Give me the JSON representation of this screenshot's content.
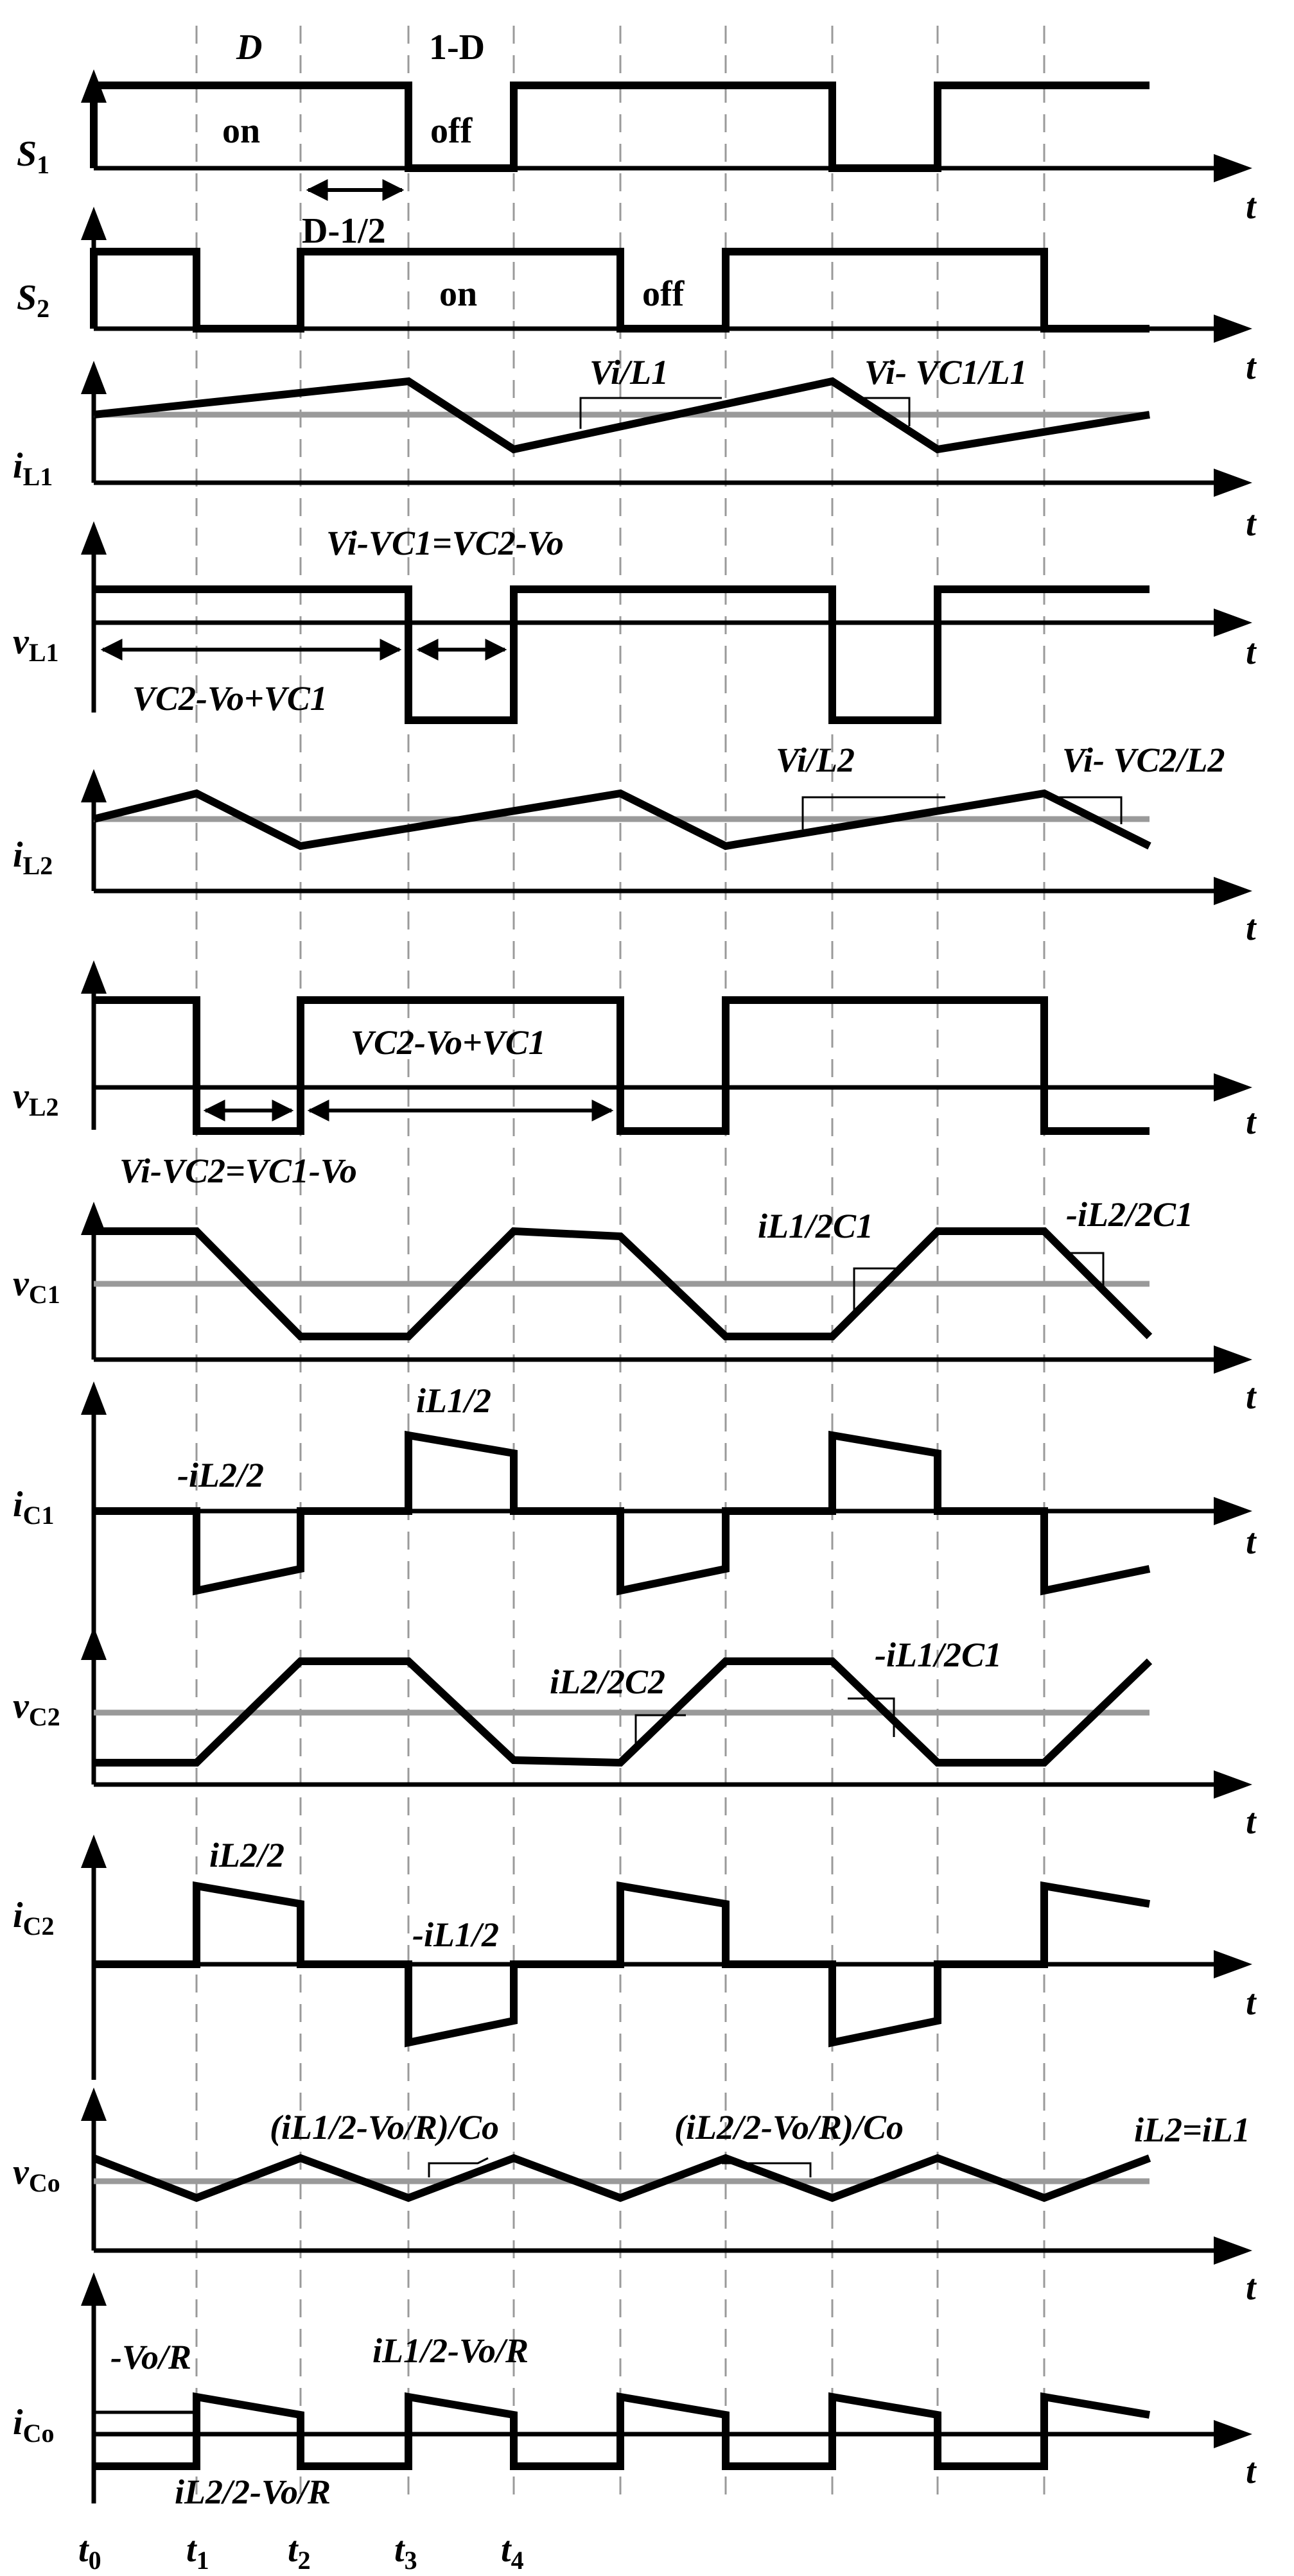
{
  "time_labels": [
    {
      "base": "t",
      "sub": "0"
    },
    {
      "base": "t",
      "sub": "1"
    },
    {
      "base": "t",
      "sub": "2"
    },
    {
      "base": "t",
      "sub": "3"
    },
    {
      "base": "t",
      "sub": "4"
    }
  ],
  "axis_t": "t",
  "panels": [
    {
      "id": "s1",
      "label": "S",
      "label_sub": "1"
    },
    {
      "id": "s2",
      "label": "S",
      "label_sub": "2"
    },
    {
      "id": "iL1",
      "label": "i",
      "label_sub": "L1"
    },
    {
      "id": "vL1",
      "label": "v",
      "label_sub": "L1"
    },
    {
      "id": "iL2",
      "label": "i",
      "label_sub": "L2"
    },
    {
      "id": "vL2",
      "label": "v",
      "label_sub": "L2"
    },
    {
      "id": "vC1",
      "label": "v",
      "label_sub": "C1"
    },
    {
      "id": "iC1",
      "label": "i",
      "label_sub": "C1"
    },
    {
      "id": "vC2",
      "label": "v",
      "label_sub": "C2"
    },
    {
      "id": "iC2",
      "label": "i",
      "label_sub": "C2"
    },
    {
      "id": "vCo",
      "label": "v",
      "label_sub": "Co"
    },
    {
      "id": "iCo",
      "label": "i",
      "label_sub": "Co"
    }
  ],
  "annotations": {
    "s1_duty": "D",
    "s1_off_duty": "1-D",
    "s1_on": "on",
    "s1_off": "off",
    "s2_overlap": "D-1/2",
    "s2_on": "on",
    "s2_off": "off",
    "iL1_rise_slope": "Vi/L1",
    "iL1_fall_slope": "Vi- VC1/L1",
    "vL1_low": "Vi-VC1=VC2-Vo",
    "vL1_high": "VC2-Vo+VC1",
    "iL2_rise_slope": "Vi/L2",
    "iL2_fall_slope": "Vi- VC2/L2",
    "vL2_high": "VC2-Vo+VC1",
    "vL2_low": "Vi-VC2=VC1-Vo",
    "vC1_rise_slope": "iL1/2C1",
    "vC1_fall_slope": "-iL2/2C1",
    "iC1_pos": "iL1/2",
    "iC1_neg": "-iL2/2",
    "vC2_rise_slope": "iL2/2C2",
    "vC2_fall_slope": "-iL1/2C1",
    "iC2_pos": "iL2/2",
    "iC2_neg": "-iL1/2",
    "vCo_slope1": "(iL1/2-Vo/R)/Co",
    "vCo_slope2": "(iL2/2-Vo/R)/Co",
    "vCo_condition": "iL2=iL1",
    "iCo_neg": "-Vo/R",
    "iCo_pos": "iL1/2-Vo/R",
    "iCo_low": "iL2/2-Vo/R"
  }
}
